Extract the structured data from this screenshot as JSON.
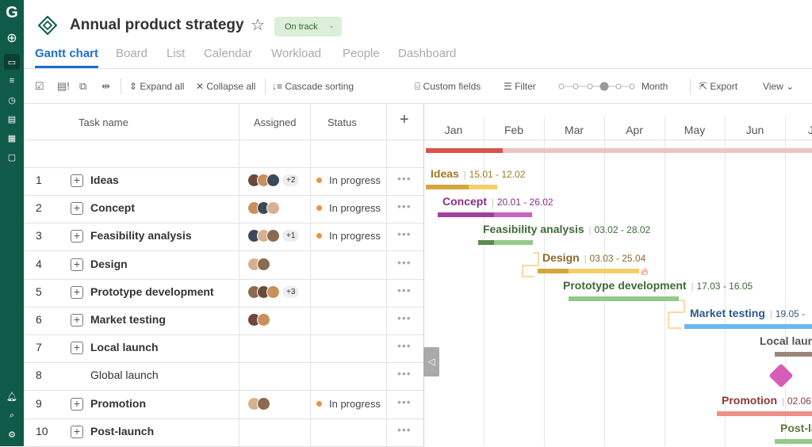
{
  "sidebar": {
    "logo": "G",
    "icons": [
      "plus-circle-icon",
      "folder-icon",
      "list-icon",
      "clock-icon",
      "document-icon",
      "grid-icon",
      "chat-icon"
    ],
    "bottom_icons": [
      "bell-icon",
      "search-icon",
      "gear-icon"
    ]
  },
  "header": {
    "title": "Annual product strategy",
    "status": "On track"
  },
  "tabs": [
    "Gantt chart",
    "Board",
    "List",
    "Calendar",
    "Workload",
    "People",
    "Dashboard"
  ],
  "toolbar": {
    "expand_all": "Expand all",
    "collapse_all": "Collapse all",
    "cascade_sorting": "Cascade sorting",
    "custom_fields": "Custom fields",
    "filter": "Filter",
    "zoom_level": "Month",
    "export": "Export",
    "view": "View"
  },
  "grid": {
    "columns": {
      "task": "Task name",
      "assigned": "Assigned",
      "status": "Status",
      "add": "+"
    },
    "rows": [
      {
        "num": "1",
        "name": "Ideas",
        "expandable": true,
        "avatars": 3,
        "more": "+2",
        "status": "In progress"
      },
      {
        "num": "2",
        "name": "Concept",
        "expandable": true,
        "avatars": 3,
        "more": "",
        "status": "In progress"
      },
      {
        "num": "3",
        "name": "Feasibility analysis",
        "expandable": true,
        "avatars": 3,
        "more": "+1",
        "status": "In progress"
      },
      {
        "num": "4",
        "name": "Design",
        "expandable": true,
        "avatars": 2,
        "more": "",
        "status": ""
      },
      {
        "num": "5",
        "name": "Prototype development",
        "expandable": true,
        "avatars": 3,
        "more": "+3",
        "status": ""
      },
      {
        "num": "6",
        "name": "Market testing",
        "expandable": true,
        "avatars": 2,
        "more": "",
        "status": ""
      },
      {
        "num": "7",
        "name": "Local launch",
        "expandable": true,
        "avatars": 0,
        "more": "",
        "status": ""
      },
      {
        "num": "8",
        "name": "Global launch",
        "expandable": false,
        "avatars": 0,
        "more": "",
        "status": ""
      },
      {
        "num": "9",
        "name": "Promotion",
        "expandable": true,
        "avatars": 2,
        "more": "",
        "status": "In progress"
      },
      {
        "num": "10",
        "name": "Post-launch",
        "expandable": true,
        "avatars": 0,
        "more": "",
        "status": ""
      }
    ]
  },
  "timeline": {
    "months": [
      "Jan",
      "Feb",
      "Mar",
      "Apr",
      "May",
      "Jun",
      "Jul"
    ],
    "tasks": [
      {
        "name": "Ideas",
        "dates": "15.01 - 12.02",
        "color": "#a07a1e",
        "bar": "#f3cf6a",
        "progress_color": "#d4a63c"
      },
      {
        "name": "Concept",
        "dates": "20.01 - 26.02",
        "color": "#8a2f86",
        "bar": "#c765c0",
        "progress_color": "#a0409b"
      },
      {
        "name": "Feasibility analysis",
        "dates": "03.02 - 28.02",
        "color": "#3d6b35",
        "bar": "#93c98a",
        "progress_color": "#5a8a4e"
      },
      {
        "name": "Design",
        "dates": "03.03 - 25.04",
        "color": "#8a6a2e",
        "bar": "#f3cf6a",
        "progress_color": "#d4a63c"
      },
      {
        "name": "Prototype development",
        "dates": "17.03 - 16.05",
        "color": "#3d6b35",
        "bar": "#93c98a",
        "progress_color": ""
      },
      {
        "name": "Market testing",
        "dates": "19.05 - ",
        "color": "#2e5a8a",
        "bar": "#6cb8ee",
        "progress_color": ""
      },
      {
        "name": "Local launch",
        "dates": "",
        "color": "#555",
        "bar": "#9b857b",
        "progress_color": ""
      },
      {
        "name": "",
        "dates": "",
        "color": "#d65db8",
        "bar": "",
        "progress_color": ""
      },
      {
        "name": "Promotion",
        "dates": "02.06",
        "color": "#8a3a3a",
        "bar": "#ee8f88",
        "progress_color": ""
      },
      {
        "name": "Post-launch",
        "dates": "",
        "color": "#5a7a3a",
        "bar": "#93c98a",
        "progress_color": ""
      }
    ]
  }
}
